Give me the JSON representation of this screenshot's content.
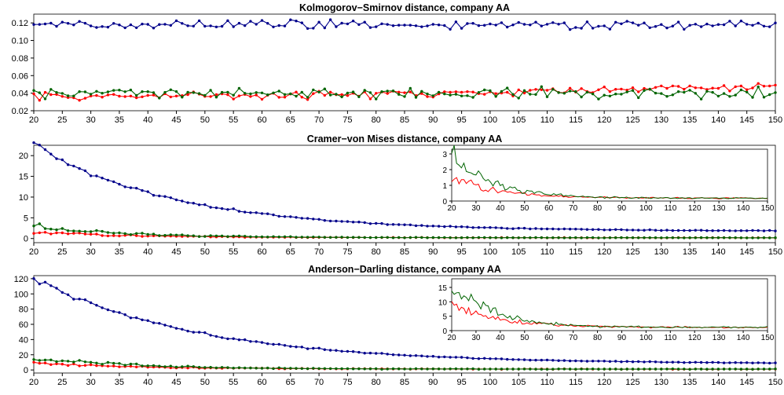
{
  "colors": {
    "blue": "#00008b",
    "red": "#ff0000",
    "green": "#006400"
  },
  "chart_data": [
    {
      "type": "line",
      "title": "Kolmogorov−Smirnov distance, company AA",
      "xlim": [
        20,
        150
      ],
      "ylim": [
        0.02,
        0.13
      ],
      "xticks": [
        20,
        25,
        30,
        35,
        40,
        45,
        50,
        55,
        60,
        65,
        70,
        75,
        80,
        85,
        90,
        95,
        100,
        105,
        110,
        115,
        120,
        125,
        130,
        135,
        140,
        145,
        150
      ],
      "yticks": [
        0.02,
        0.04,
        0.06,
        0.08,
        0.1,
        0.12
      ],
      "ytick_labels": [
        "0.02",
        "0.04",
        "0.06",
        "0.08",
        "0.10",
        "0.12"
      ],
      "series": [
        {
          "color": "blue",
          "markers": true,
          "seed": 11,
          "profile": "flat",
          "base": 0.118,
          "noise": 0.007
        },
        {
          "color": "red",
          "markers": true,
          "seed": 23,
          "profile": "rising",
          "base": 0.036,
          "end": 0.048,
          "noise": 0.006
        },
        {
          "color": "green",
          "markers": true,
          "seed": 37,
          "profile": "flat",
          "base": 0.04,
          "noise": 0.008
        }
      ]
    },
    {
      "type": "line",
      "title": "Cramer−von Mises distance, company AA",
      "xlim": [
        20,
        150
      ],
      "ylim": [
        -1,
        22.5
      ],
      "xticks": [
        20,
        25,
        30,
        35,
        40,
        45,
        50,
        55,
        60,
        65,
        70,
        75,
        80,
        85,
        90,
        95,
        100,
        105,
        110,
        115,
        120,
        125,
        130,
        135,
        140,
        145,
        150
      ],
      "yticks": [
        0,
        5,
        10,
        15,
        20
      ],
      "ytick_labels": [
        "0",
        "5",
        "10",
        "15",
        "20"
      ],
      "series": [
        {
          "color": "blue",
          "markers": true,
          "seed": 5,
          "profile": "decay",
          "c": 1.75,
          "a": 20.8,
          "k": 0.04,
          "noise": 0.045
        },
        {
          "color": "red",
          "markers": true,
          "seed": 17,
          "profile": "decay",
          "c": 0.18,
          "a": 1.25,
          "k": 0.05,
          "noise": 0.28
        },
        {
          "color": "green",
          "markers": true,
          "seed": 29,
          "profile": "decay",
          "c": 0.18,
          "a": 2.8,
          "k": 0.06,
          "noise": 0.3
        }
      ],
      "inset": {
        "xlim": [
          20,
          150
        ],
        "ylim": [
          0,
          3.3
        ],
        "xticks": [
          20,
          30,
          40,
          50,
          60,
          70,
          80,
          90,
          100,
          110,
          120,
          130,
          140,
          150
        ],
        "yticks": [
          0,
          1,
          2,
          3
        ],
        "ytick_labels": [
          "0",
          "1",
          "2",
          "3"
        ],
        "series": [
          {
            "color": "red",
            "markers": false,
            "seed": 17,
            "profile": "decay",
            "c": 0.18,
            "a": 1.25,
            "k": 0.05,
            "noise": 0.28
          },
          {
            "color": "green",
            "markers": false,
            "seed": 29,
            "profile": "decay",
            "c": 0.18,
            "a": 2.8,
            "k": 0.06,
            "noise": 0.3
          }
        ]
      }
    },
    {
      "type": "line",
      "title": "Anderson−Darling distance, company AA",
      "xlim": [
        20,
        150
      ],
      "ylim": [
        -4,
        124
      ],
      "xticks": [
        20,
        25,
        30,
        35,
        40,
        45,
        50,
        55,
        60,
        65,
        70,
        75,
        80,
        85,
        90,
        95,
        100,
        105,
        110,
        115,
        120,
        125,
        130,
        135,
        140,
        145,
        150
      ],
      "yticks": [
        0,
        20,
        40,
        60,
        80,
        100,
        120
      ],
      "ytick_labels": [
        "0",
        "20",
        "40",
        "60",
        "80",
        "100",
        "120"
      ],
      "series": [
        {
          "color": "blue",
          "markers": true,
          "seed": 7,
          "profile": "decay",
          "c": 8.0,
          "a": 113.0,
          "k": 0.035,
          "noise": 0.045
        },
        {
          "color": "red",
          "markers": true,
          "seed": 19,
          "profile": "decay",
          "c": 1.1,
          "a": 8.0,
          "k": 0.05,
          "noise": 0.28
        },
        {
          "color": "green",
          "markers": true,
          "seed": 31,
          "profile": "decay",
          "c": 1.1,
          "a": 16.0,
          "k": 0.06,
          "noise": 0.3
        }
      ],
      "inset": {
        "xlim": [
          20,
          150
        ],
        "ylim": [
          0,
          18
        ],
        "xticks": [
          20,
          30,
          40,
          50,
          60,
          70,
          80,
          90,
          100,
          110,
          120,
          130,
          140,
          150
        ],
        "yticks": [
          0,
          5,
          10,
          15
        ],
        "ytick_labels": [
          "0",
          "5",
          "10",
          "15"
        ],
        "series": [
          {
            "color": "red",
            "markers": false,
            "seed": 19,
            "profile": "decay",
            "c": 1.1,
            "a": 8.0,
            "k": 0.05,
            "noise": 0.28
          },
          {
            "color": "green",
            "markers": false,
            "seed": 31,
            "profile": "decay",
            "c": 1.1,
            "a": 16.0,
            "k": 0.06,
            "noise": 0.3
          }
        ]
      }
    }
  ]
}
